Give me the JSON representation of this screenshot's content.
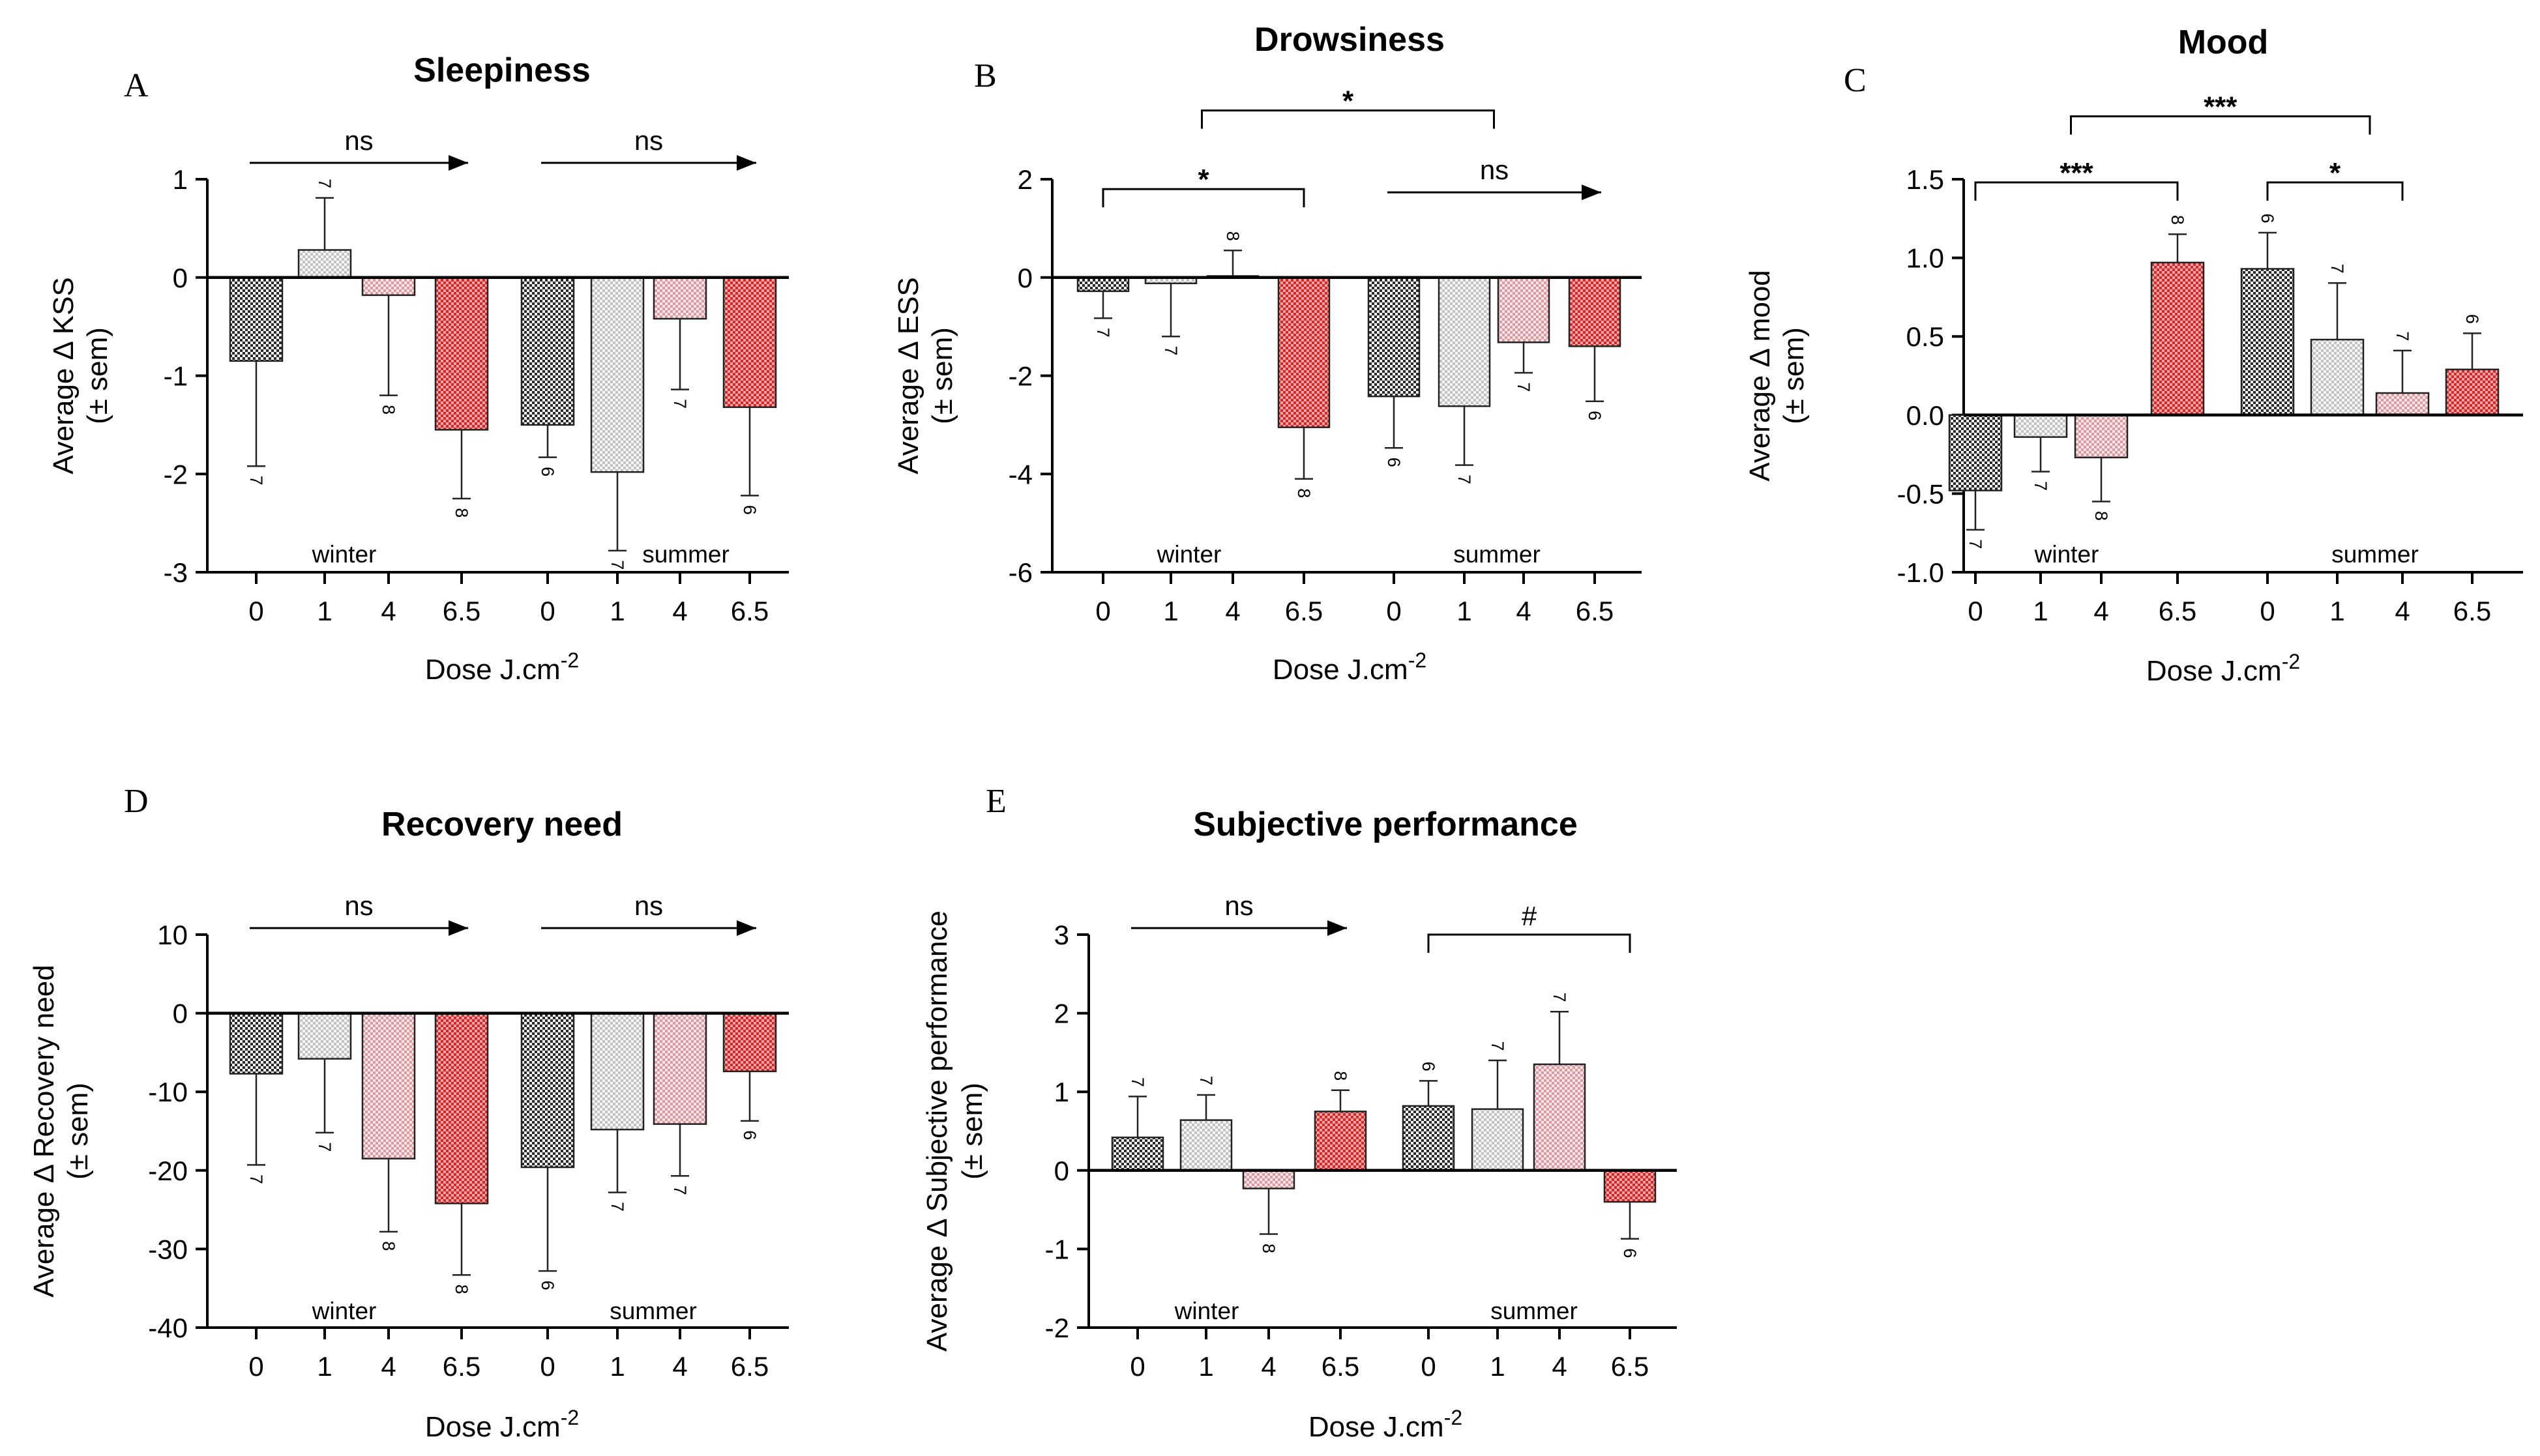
{
  "colors": {
    "dose_0": "#2b2b2b",
    "dose_1": "#cfcfcf",
    "dose_4": "#e5b1b6",
    "dose_6.5": "#d63a3a",
    "axis": "#000000"
  },
  "shared": {
    "xlabel": "Dose J.cm",
    "xlabel_sup": "-2",
    "season_winter": "winter",
    "season_summer": "summer"
  },
  "chart_data": [
    {
      "panel": "A",
      "type": "bar",
      "title": "Sleepiness",
      "ylabel_line1": "Average  Δ KSS",
      "ylabel_line2": "(± sem)",
      "ylim": [
        -3,
        1
      ],
      "yticks": [
        1,
        0,
        -1,
        -2,
        -3
      ],
      "categories": [
        "0",
        "1",
        "4",
        "6.5",
        "0",
        "1",
        "4",
        "6.5"
      ],
      "groups": [
        "winter",
        "winter",
        "winter",
        "winter",
        "summer",
        "summer",
        "summer",
        "summer"
      ],
      "values": [
        -0.85,
        0.28,
        -0.18,
        -1.55,
        -1.5,
        -1.98,
        -0.42,
        -1.32
      ],
      "errors": [
        1.07,
        0.53,
        1.02,
        0.7,
        0.33,
        0.8,
        0.72,
        0.9
      ],
      "n": [
        "7",
        "7",
        "8",
        "8",
        "6",
        "7",
        "7",
        "6"
      ],
      "annotations": [
        {
          "text": "ns",
          "kind": "arrow",
          "from": 0,
          "to": 3,
          "yval": 1.1
        },
        {
          "text": "ns",
          "kind": "arrow",
          "from": 4,
          "to": 7,
          "yval": 1.1
        }
      ]
    },
    {
      "panel": "B",
      "type": "bar",
      "title": "Drowsiness",
      "ylabel_line1": "Average  Δ ESS",
      "ylabel_line2": "(± sem)",
      "ylim": [
        -6,
        2
      ],
      "yticks": [
        2,
        0,
        -2,
        -4,
        -6
      ],
      "categories": [
        "0",
        "1",
        "4",
        "6.5",
        "0",
        "1",
        "4",
        "6.5"
      ],
      "groups": [
        "winter",
        "winter",
        "winter",
        "winter",
        "summer",
        "summer",
        "summer",
        "summer"
      ],
      "values": [
        -0.28,
        -0.12,
        0.03,
        -3.05,
        -2.42,
        -2.62,
        -1.32,
        -1.4
      ],
      "errors": [
        0.55,
        1.08,
        0.52,
        1.05,
        1.05,
        1.2,
        0.62,
        1.12
      ],
      "n": [
        "7",
        "7",
        "8",
        "8",
        "6",
        "7",
        "7",
        "6"
      ],
      "annotations": [
        {
          "text": "*",
          "kind": "bracket",
          "from": 0,
          "to": 3,
          "yval": 1.8
        },
        {
          "text": "*",
          "kind": "bracket",
          "from": 1.5,
          "to": 5.5,
          "yval": 3.4
        },
        {
          "text": "ns",
          "kind": "arrow",
          "from": 4,
          "to": 7,
          "yval": 1.6
        }
      ]
    },
    {
      "panel": "C",
      "type": "bar",
      "title": "Mood",
      "ylabel_line1": "Average  Δ mood",
      "ylabel_line2": "(± sem)",
      "ylim": [
        -1.0,
        1.5
      ],
      "yticks": [
        1.5,
        1.0,
        0.5,
        0.0,
        -0.5,
        -1.0
      ],
      "categories": [
        "0",
        "1",
        "4",
        "6.5",
        "0",
        "1",
        "4",
        "6.5"
      ],
      "groups": [
        "winter",
        "winter",
        "winter",
        "winter",
        "summer",
        "summer",
        "summer",
        "summer"
      ],
      "values": [
        -0.48,
        -0.14,
        -0.27,
        0.97,
        0.93,
        0.48,
        0.14,
        0.29
      ],
      "errors": [
        0.25,
        0.22,
        0.28,
        0.18,
        0.23,
        0.36,
        0.27,
        0.23
      ],
      "n": [
        "7",
        "7",
        "8",
        "8",
        "6",
        "7",
        "7",
        "6"
      ],
      "annotations": [
        {
          "text": "***",
          "kind": "bracket",
          "from": 0,
          "to": 3,
          "yval": 1.48
        },
        {
          "text": "***",
          "kind": "bracket",
          "from": 1.5,
          "to": 5.5,
          "yval": 1.9
        },
        {
          "text": "*",
          "kind": "bracket",
          "from": 4,
          "to": 6,
          "yval": 1.48
        }
      ]
    },
    {
      "panel": "D",
      "type": "bar",
      "title": "Recovery need",
      "ylabel_line1": "Average  Δ Recovery need",
      "ylabel_line2": "(± sem)",
      "ylim": [
        -40,
        10
      ],
      "yticks": [
        10,
        0,
        -10,
        -20,
        -30,
        -40
      ],
      "categories": [
        "0",
        "1",
        "4",
        "6.5",
        "0",
        "1",
        "4",
        "6.5"
      ],
      "groups": [
        "winter",
        "winter",
        "winter",
        "winter",
        "summer",
        "summer",
        "summer",
        "summer"
      ],
      "values": [
        -7.7,
        -5.8,
        -18.5,
        -24.2,
        -19.6,
        -14.8,
        -14.1,
        -7.4
      ],
      "errors": [
        11.6,
        9.4,
        9.3,
        9.1,
        13.2,
        8.0,
        6.6,
        6.3
      ],
      "n": [
        "7",
        "7",
        "8",
        "8",
        "6",
        "7",
        "7",
        "6"
      ],
      "annotations": [
        {
          "text": "ns",
          "kind": "arrow",
          "from": 0,
          "to": 3,
          "yval": 10
        },
        {
          "text": "ns",
          "kind": "arrow",
          "from": 4,
          "to": 7,
          "yval": 10
        }
      ]
    },
    {
      "panel": "E",
      "type": "bar",
      "title": "Subjective performance",
      "ylabel_line1": "Average  Δ Subjective performance",
      "ylabel_line2": "(± sem)",
      "ylim": [
        -2,
        3
      ],
      "yticks": [
        3,
        2,
        1,
        0,
        -1,
        -2
      ],
      "categories": [
        "0",
        "1",
        "4",
        "6.5",
        "0",
        "1",
        "4",
        "6.5"
      ],
      "groups": [
        "winter",
        "winter",
        "winter",
        "winter",
        "summer",
        "summer",
        "summer",
        "summer"
      ],
      "values": [
        0.42,
        0.64,
        -0.23,
        0.75,
        0.82,
        0.78,
        1.35,
        -0.4
      ],
      "errors": [
        0.52,
        0.32,
        0.58,
        0.27,
        0.32,
        0.62,
        0.67,
        0.47
      ],
      "n": [
        "7",
        "7",
        "8",
        "8",
        "6",
        "7",
        "7",
        "6"
      ],
      "annotations": [
        {
          "text": "ns",
          "kind": "arrow",
          "from": 0,
          "to": 3,
          "yval": 3
        },
        {
          "text": "#",
          "kind": "bracket",
          "from": 4,
          "to": 7,
          "yval": 3
        }
      ]
    }
  ]
}
